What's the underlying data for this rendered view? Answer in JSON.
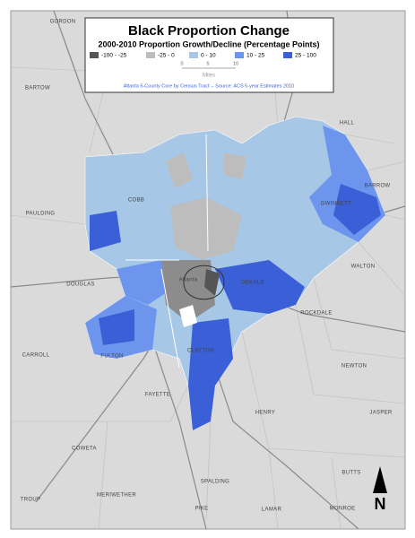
{
  "legend": {
    "title": "Black Proportion Change",
    "subtitle": "2000-2010 Proportion Growth/Decline (Percentage Points)",
    "items": [
      {
        "label": "-100 - -25",
        "color": "#555555"
      },
      {
        "label": "-25 - 0",
        "color": "#bdbdbd"
      },
      {
        "label": "0 - 10",
        "color": "#a6c8e6"
      },
      {
        "label": "10 - 25",
        "color": "#6d95ee"
      },
      {
        "label": "25 - 100",
        "color": "#3a5fd6"
      }
    ],
    "scale_ticks": [
      "0",
      "5",
      "10"
    ],
    "scale_unit": "Miles",
    "source": "Atlanta 5-County Core by Census Tract -- Source: ACS 5-year Estimates 2010"
  },
  "labels": [
    "GORDON",
    "BARTOW",
    "HALL",
    "BARROW",
    "PAULDING",
    "COBB",
    "GWINNETT",
    "WALTON",
    "DOUGLAS",
    "DEKALB",
    "ROCKDALE",
    "Atlanta",
    "CARROLL",
    "FULTON",
    "CLAYTON",
    "NEWTON",
    "FAYETTE",
    "HENRY",
    "COWETA",
    "JASPER",
    "BUTTS",
    "SPALDING",
    "MERIWETHER",
    "TROUP",
    "PIKE",
    "LAMAR",
    "MONROE"
  ],
  "north": "N"
}
